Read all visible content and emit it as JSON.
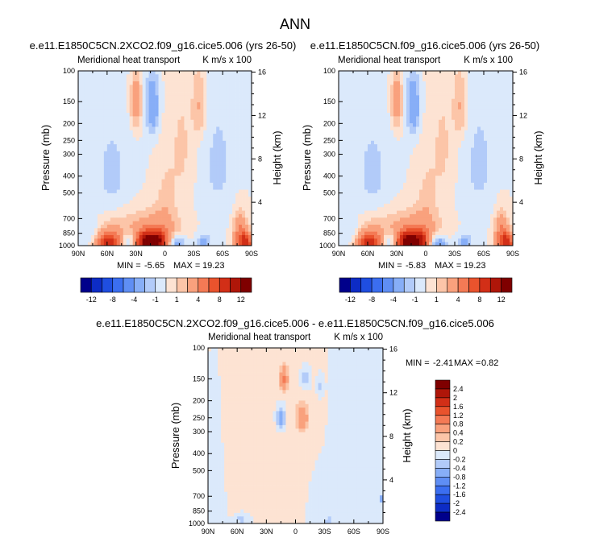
{
  "page": {
    "title": "ANN"
  },
  "colors": {
    "frame": "#000000",
    "zero_neg": "#dbe9fb",
    "zero_pos": "#fde3d3"
  },
  "chart_data": [
    {
      "type": "heatmap",
      "id": "p1",
      "title": "e.e11.E1850C5CN.2XCO2.f09_g16.cice5.006 (yrs 26-50)",
      "subtitle_left": "Meridional heat transport",
      "subtitle_right": "K m/s x 100",
      "xlabel": "",
      "ylabel": "Pressure (mb)",
      "ylabel_right": "Height (km)",
      "x_ticks": [
        "90N",
        "60N",
        "30N",
        "0",
        "30S",
        "60S",
        "90S"
      ],
      "x_range": [
        90,
        -90
      ],
      "y_ticks": [
        100,
        150,
        200,
        250,
        300,
        400,
        500,
        700,
        850,
        1000
      ],
      "y_range": [
        100,
        1000
      ],
      "y_scale": "log",
      "y_right_ticks": [
        4,
        8,
        12,
        16
      ],
      "min_label": "MIN =",
      "min": "-5.65",
      "max_label": "MAX =",
      "max": "19.23",
      "levels": [
        -12,
        -10,
        -8,
        -6,
        -4,
        -2,
        -1,
        0,
        1,
        2,
        4,
        6,
        8,
        10,
        12
      ],
      "colorbar_labels": [
        "-12",
        "-8",
        "-4",
        "-1",
        "1",
        "4",
        "8",
        "12"
      ],
      "colors": [
        "#00008b",
        "#0d2cc5",
        "#1f4ee0",
        "#3b6ef0",
        "#5f8ef4",
        "#87aef7",
        "#b2cbf9",
        "#dbe9fb",
        "#fde3d3",
        "#fcc5a8",
        "#f9a17d",
        "#f47a55",
        "#e9532d",
        "#d22f17",
        "#af1609",
        "#7f0000"
      ],
      "blobs": [
        {
          "lat": 15,
          "p": 970,
          "sx": 14,
          "sy": 95,
          "amp": 13
        },
        {
          "lat": 9,
          "p": 860,
          "sx": 18,
          "sy": 150,
          "amp": 4
        },
        {
          "lat": 58,
          "p": 970,
          "sx": 9,
          "sy": 90,
          "amp": 8
        },
        {
          "lat": 50,
          "p": 850,
          "sx": 16,
          "sy": 150,
          "amp": 2
        },
        {
          "lat": 36,
          "p": 960,
          "sx": 8,
          "sy": 90,
          "amp": -7
        },
        {
          "lat": -10,
          "p": 970,
          "sx": 8,
          "sy": 85,
          "amp": -6
        },
        {
          "lat": -40,
          "p": 970,
          "sx": 6,
          "sy": 80,
          "amp": -2.5
        },
        {
          "lat": -36,
          "p": 160,
          "sx": 5,
          "sy": 55,
          "amp": 2.2
        },
        {
          "lat": 30,
          "p": 150,
          "sx": 4,
          "sy": 40,
          "amp": 3.5
        },
        {
          "lat": 13,
          "p": 160,
          "sx": 5,
          "sy": 45,
          "amp": -3.5
        },
        {
          "lat": -78,
          "p": 900,
          "sx": 5,
          "sy": 180,
          "amp": 5
        },
        {
          "lat": -85,
          "p": 960,
          "sx": 4,
          "sy": 90,
          "amp": 8
        },
        {
          "lat": 78,
          "p": 840,
          "sx": 7,
          "sy": 120,
          "amp": -1.5
        },
        {
          "lat": 0,
          "p": 560,
          "sx": 7,
          "sy": 180,
          "amp": 1.2
        },
        {
          "lat": -18,
          "p": 280,
          "sx": 10,
          "sy": 180,
          "amp": 1.2
        },
        {
          "lat": 55,
          "p": 400,
          "sx": 14,
          "sy": 200,
          "amp": -1.3
        },
        {
          "lat": -55,
          "p": 350,
          "sx": 15,
          "sy": 230,
          "amp": -1.2
        }
      ]
    },
    {
      "type": "heatmap",
      "id": "p2",
      "title": "e.e11.E1850C5CN.f09_g16.cice5.006 (yrs 26-50)",
      "subtitle_left": "Meridional heat transport",
      "subtitle_right": "K m/s x 100",
      "xlabel": "",
      "ylabel": "Pressure (mb)",
      "ylabel_right": "Height (km)",
      "x_ticks": [
        "90N",
        "60N",
        "30N",
        "0",
        "30S",
        "60S",
        "90S"
      ],
      "x_range": [
        90,
        -90
      ],
      "y_ticks": [
        100,
        150,
        200,
        250,
        300,
        400,
        500,
        700,
        850,
        1000
      ],
      "y_range": [
        100,
        1000
      ],
      "y_scale": "log",
      "y_right_ticks": [
        4,
        8,
        12,
        16
      ],
      "min_label": "MIN =",
      "min": "-5.83",
      "max_label": "MAX =",
      "max": "19.23",
      "levels": [
        -12,
        -10,
        -8,
        -6,
        -4,
        -2,
        -1,
        0,
        1,
        2,
        4,
        6,
        8,
        10,
        12
      ],
      "colorbar_labels": [
        "-12",
        "-8",
        "-4",
        "-1",
        "1",
        "4",
        "8",
        "12"
      ],
      "colors": [
        "#00008b",
        "#0d2cc5",
        "#1f4ee0",
        "#3b6ef0",
        "#5f8ef4",
        "#87aef7",
        "#b2cbf9",
        "#dbe9fb",
        "#fde3d3",
        "#fcc5a8",
        "#f9a17d",
        "#f47a55",
        "#e9532d",
        "#d22f17",
        "#af1609",
        "#7f0000"
      ],
      "blobs": [
        {
          "lat": 15,
          "p": 970,
          "sx": 14,
          "sy": 95,
          "amp": 13
        },
        {
          "lat": 9,
          "p": 860,
          "sx": 18,
          "sy": 150,
          "amp": 4
        },
        {
          "lat": 58,
          "p": 970,
          "sx": 9,
          "sy": 90,
          "amp": 8
        },
        {
          "lat": 50,
          "p": 850,
          "sx": 16,
          "sy": 150,
          "amp": 2
        },
        {
          "lat": 36,
          "p": 960,
          "sx": 8,
          "sy": 90,
          "amp": -7
        },
        {
          "lat": -10,
          "p": 970,
          "sx": 8,
          "sy": 85,
          "amp": -6.5
        },
        {
          "lat": -40,
          "p": 970,
          "sx": 6,
          "sy": 80,
          "amp": -2.5
        },
        {
          "lat": -36,
          "p": 160,
          "sx": 5,
          "sy": 55,
          "amp": 2.2
        },
        {
          "lat": 30,
          "p": 150,
          "sx": 4,
          "sy": 40,
          "amp": 3.5
        },
        {
          "lat": 13,
          "p": 160,
          "sx": 5,
          "sy": 45,
          "amp": -3.5
        },
        {
          "lat": -78,
          "p": 900,
          "sx": 5,
          "sy": 180,
          "amp": 5
        },
        {
          "lat": -85,
          "p": 960,
          "sx": 4,
          "sy": 90,
          "amp": 8
        },
        {
          "lat": 78,
          "p": 840,
          "sx": 7,
          "sy": 120,
          "amp": -1.5
        },
        {
          "lat": 0,
          "p": 560,
          "sx": 7,
          "sy": 180,
          "amp": 1.2
        },
        {
          "lat": -18,
          "p": 280,
          "sx": 10,
          "sy": 180,
          "amp": 1.2
        },
        {
          "lat": 55,
          "p": 400,
          "sx": 14,
          "sy": 200,
          "amp": -1.3
        },
        {
          "lat": -55,
          "p": 350,
          "sx": 15,
          "sy": 230,
          "amp": -1.2
        }
      ]
    },
    {
      "type": "heatmap",
      "id": "p3",
      "title": "e.e11.E1850C5CN.2XCO2.f09_g16.cice5.006 - e.e11.E1850C5CN.f09_g16.cice5.006",
      "subtitle_left": "Meridional heat transport",
      "subtitle_right": "K m/s x 100",
      "xlabel": "",
      "ylabel": "Pressure (mb)",
      "ylabel_right": "Height (km)",
      "x_ticks": [
        "90N",
        "60N",
        "30N",
        "0",
        "30S",
        "60S",
        "90S"
      ],
      "x_range": [
        90,
        -90
      ],
      "y_ticks": [
        100,
        150,
        200,
        250,
        300,
        400,
        500,
        700,
        850,
        1000
      ],
      "y_range": [
        100,
        1000
      ],
      "y_scale": "log",
      "y_right_ticks": [
        4,
        8,
        12,
        16
      ],
      "min_label": "MIN =",
      "min": "-2.41",
      "max_label": "MAX =",
      "max": "0.82",
      "levels": [
        -2.4,
        -2,
        -1.6,
        -1.2,
        -0.8,
        -0.4,
        -0.2,
        0,
        0.2,
        0.4,
        0.8,
        1.2,
        1.6,
        2,
        2.4
      ],
      "colorbar_labels": [
        "2.4",
        "2",
        "1.6",
        "1.2",
        "0.8",
        "0.4",
        "0.2",
        "0",
        "-0.2",
        "-0.4",
        "-0.8",
        "-1.2",
        "-1.6",
        "-2",
        "-2.4"
      ],
      "colors": [
        "#00008b",
        "#0d2cc5",
        "#1f4ee0",
        "#3b6ef0",
        "#5f8ef4",
        "#87aef7",
        "#b2cbf9",
        "#dbe9fb",
        "#fde3d3",
        "#fcc5a8",
        "#f9a17d",
        "#f47a55",
        "#e9532d",
        "#d22f17",
        "#af1609",
        "#7f0000"
      ],
      "blobs": [
        {
          "lat": 12,
          "p": 150,
          "sx": 3,
          "sy": 18,
          "amp": 0.8
        },
        {
          "lat": -7,
          "p": 250,
          "sx": 4,
          "sy": 30,
          "amp": 0.75
        },
        {
          "lat": 15,
          "p": 250,
          "sx": 3,
          "sy": 25,
          "amp": -0.7
        },
        {
          "lat": -10,
          "p": 150,
          "sx": 3,
          "sy": 15,
          "amp": -0.35
        },
        {
          "lat": -25,
          "p": 165,
          "sx": 2,
          "sy": 12,
          "amp": -0.25
        },
        {
          "lat": -88,
          "p": 730,
          "sx": 1.5,
          "sy": 30,
          "amp": -0.6
        },
        {
          "lat": 55,
          "p": 950,
          "sx": 5,
          "sy": 50,
          "amp": -0.3
        },
        {
          "lat": -35,
          "p": 960,
          "sx": 5,
          "sy": 50,
          "amp": -0.25
        },
        {
          "lat": 0,
          "p": 500,
          "sx": 15,
          "sy": 260,
          "amp": 0.12
        },
        {
          "lat": 50,
          "p": 450,
          "sx": 18,
          "sy": 300,
          "amp": 0.1
        },
        {
          "lat": -60,
          "p": 450,
          "sx": 12,
          "sy": 300,
          "amp": -0.1
        },
        {
          "lat": 80,
          "p": 700,
          "sx": 6,
          "sy": 300,
          "amp": -0.1
        },
        {
          "lat": -20,
          "p": 700,
          "sx": 8,
          "sy": 200,
          "amp": -0.1
        }
      ]
    }
  ]
}
